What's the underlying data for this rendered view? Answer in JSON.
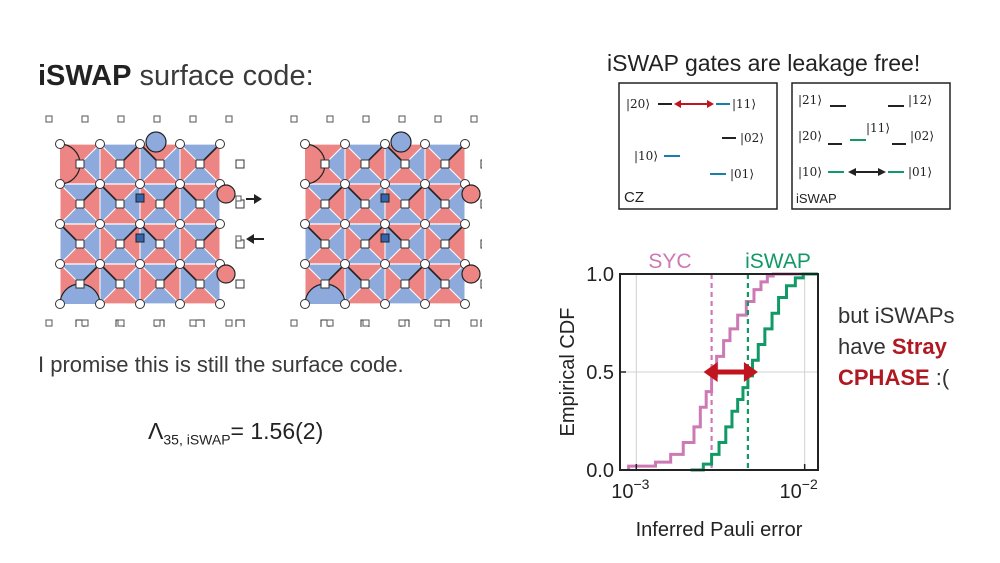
{
  "left": {
    "title_bold": "iSWAP",
    "title_rest": " surface code:",
    "promise": "I promise this is still the surface code.",
    "lambda": {
      "symbol": "Λ",
      "subscript": "35, iSWAP",
      "value": "= 1.56(2)"
    }
  },
  "levels": {
    "title": "iSWAP gates are leakage free!",
    "cz": {
      "label": "CZ",
      "l20": "|20⟩",
      "l11": "|11⟩",
      "l02": "|02⟩",
      "l10": "|10⟩",
      "l01": "|01⟩"
    },
    "iswap": {
      "label": "iSWAP",
      "l21": "|21⟩",
      "l12": "|12⟩",
      "l20": "|20⟩",
      "l11": "|11⟩",
      "l02": "|02⟩",
      "l10": "|10⟩",
      "l01": "|01⟩"
    }
  },
  "chart_data": {
    "type": "line",
    "xlabel": "Inferred Pauli error",
    "ylabel": "Empirical CDF",
    "xscale": "log",
    "xlim": [
      0.0008,
      0.012
    ],
    "ylim": [
      0,
      1.0
    ],
    "x_ticks": [
      {
        "value": 0.001,
        "label": "10",
        "exp": "−3"
      },
      {
        "value": 0.01,
        "label": "10",
        "exp": "−2"
      }
    ],
    "y_ticks": [
      {
        "value": 0,
        "label": "0.0"
      },
      {
        "value": 0.5,
        "label": "0.5"
      },
      {
        "value": 1.0,
        "label": "1.0"
      }
    ],
    "series": [
      {
        "name": "SYC",
        "color": "#cc79b4",
        "x": [
          0.0009,
          0.0013,
          0.0016,
          0.0019,
          0.0022,
          0.0024,
          0.0026,
          0.0028,
          0.003,
          0.0033,
          0.0036,
          0.004,
          0.0045,
          0.005,
          0.0055,
          0.006,
          0.0065
        ],
        "y": [
          0.02,
          0.04,
          0.08,
          0.14,
          0.22,
          0.32,
          0.4,
          0.48,
          0.58,
          0.66,
          0.72,
          0.79,
          0.86,
          0.92,
          0.96,
          0.99,
          1.0
        ],
        "median": 0.0028
      },
      {
        "name": "iSWAP",
        "color": "#119966",
        "x": [
          0.0021,
          0.0025,
          0.0028,
          0.0031,
          0.0034,
          0.0037,
          0.004,
          0.0043,
          0.0046,
          0.0049,
          0.0053,
          0.0058,
          0.0064,
          0.007,
          0.0078,
          0.0088,
          0.0098
        ],
        "y": [
          0.0,
          0.03,
          0.08,
          0.14,
          0.22,
          0.3,
          0.36,
          0.42,
          0.48,
          0.56,
          0.64,
          0.72,
          0.8,
          0.88,
          0.94,
          0.98,
          1.0
        ],
        "median": 0.0046
      }
    ],
    "colors": {
      "syc": "#cc79b4",
      "iswap": "#119966",
      "arrow": "#c0151f"
    }
  },
  "stray": {
    "line1": "but iSWAPs",
    "line2": "have ",
    "highlight1": "Stray",
    "highlight2": "CPHASE",
    "tail": " :("
  }
}
